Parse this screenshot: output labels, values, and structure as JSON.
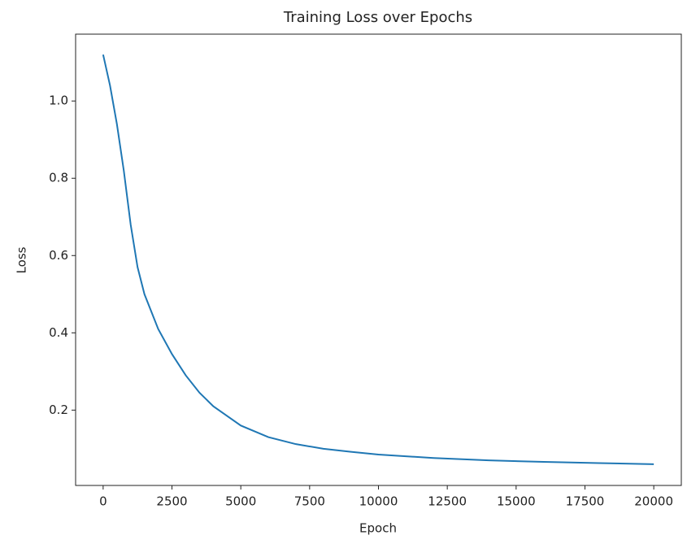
{
  "chart_data": {
    "type": "line",
    "title": "Training Loss over Epochs",
    "x_label": "Epoch",
    "y_label": "Loss",
    "x": [
      0,
      250,
      500,
      750,
      1000,
      1250,
      1500,
      2000,
      2500,
      3000,
      3500,
      4000,
      5000,
      6000,
      7000,
      8000,
      9000,
      10000,
      12000,
      14000,
      16000,
      18000,
      20000
    ],
    "series": [
      {
        "name": "Loss",
        "color": "#1f77b4",
        "values": [
          1.12,
          1.04,
          0.94,
          0.82,
          0.68,
          0.57,
          0.5,
          0.41,
          0.345,
          0.29,
          0.245,
          0.21,
          0.16,
          0.13,
          0.112,
          0.1,
          0.092,
          0.085,
          0.076,
          0.07,
          0.066,
          0.063,
          0.06
        ]
      }
    ],
    "xlim": [
      -1000,
      21000
    ],
    "ylim": [
      0.005,
      1.173
    ],
    "xticks": [
      0,
      2500,
      5000,
      7500,
      10000,
      12500,
      15000,
      17500,
      20000
    ],
    "yticks": [
      0.2,
      0.4,
      0.6,
      0.8,
      {
        "value": 1,
        "label": "1.0"
      }
    ],
    "grid": false
  }
}
